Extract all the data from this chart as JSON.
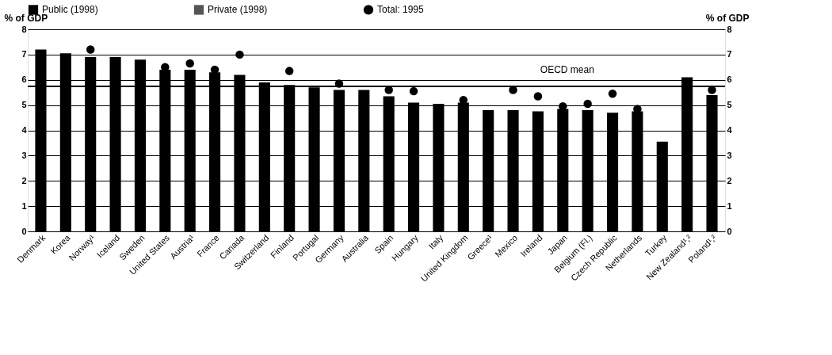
{
  "chart_data": {
    "type": "bar",
    "ylabel": "% of GDP",
    "y2label": "% of GDP",
    "categories": [
      "Denmark",
      "Korea",
      "Norway¹",
      "Iceland",
      "Sweden",
      "United States",
      "Austria¹",
      "France",
      "Canada",
      "Switzerland",
      "Finland",
      "Portugal",
      "Germany",
      "Australia",
      "Spain",
      "Hungary",
      "Italy",
      "United Kingdom",
      "Greece¹",
      "Mexico",
      "Ireland",
      "Japan",
      "Belgium (Fl.)",
      "Czech Republic",
      "Netherlands",
      "Turkey",
      "New Zealand¹,²",
      "Poland¹,²"
    ],
    "series": [
      {
        "name": "Public (1998)",
        "color": "#000000",
        "values": [
          7.2,
          7.05,
          6.9,
          6.9,
          6.8,
          6.4,
          6.4,
          6.3,
          6.2,
          5.9,
          5.8,
          5.7,
          5.6,
          5.6,
          5.35,
          5.1,
          5.05,
          5.1,
          4.8,
          4.8,
          4.75,
          4.85,
          4.8,
          4.7,
          4.75,
          3.55,
          6.1,
          5.4
        ]
      },
      {
        "name": "Private (1998)",
        "color": "#555555",
        "values": [
          null,
          null,
          null,
          null,
          null,
          null,
          null,
          null,
          null,
          null,
          null,
          null,
          null,
          null,
          null,
          null,
          null,
          null,
          null,
          null,
          null,
          null,
          null,
          null,
          null,
          null,
          null,
          null
        ]
      },
      {
        "name": "Total: 1995",
        "type": "scatter",
        "color": "#000000",
        "values": [
          null,
          null,
          7.2,
          null,
          null,
          6.5,
          6.65,
          6.4,
          7.0,
          null,
          6.35,
          null,
          5.85,
          null,
          5.6,
          5.55,
          null,
          5.2,
          null,
          5.6,
          5.35,
          4.95,
          5.05,
          5.45,
          4.85,
          null,
          null,
          5.6
        ]
      }
    ],
    "ylim": [
      0,
      8
    ],
    "yticks": [
      0,
      1,
      2,
      3,
      4,
      5,
      6,
      7,
      8
    ],
    "y2lim": [
      0,
      8
    ],
    "y2ticks": [
      0,
      1,
      2,
      3,
      4,
      5,
      6,
      7,
      8
    ],
    "ref_lines": [
      {
        "axis": "y",
        "value": 5.74,
        "label": "OECD mean"
      }
    ],
    "grid": "y",
    "legend": "top",
    "marker": "circle"
  }
}
